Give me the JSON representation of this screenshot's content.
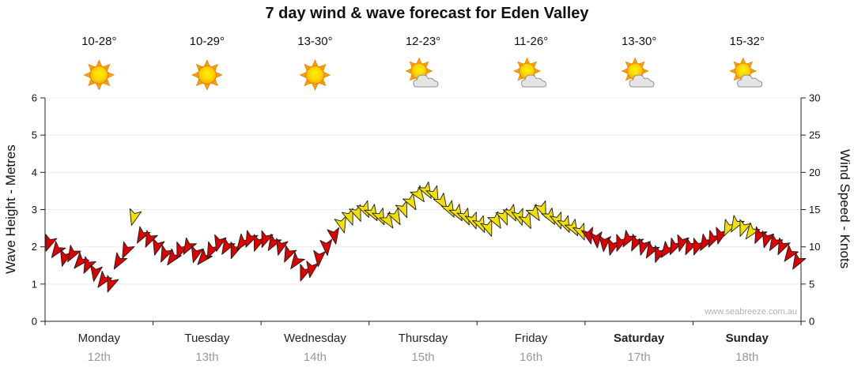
{
  "title": "7 day wind & wave forecast for Eden Valley",
  "watermark": "www.seabreeze.com.au",
  "days": [
    {
      "name": "Monday",
      "date": "12th",
      "temp": "10-28°",
      "icon": "sunny",
      "bold": false
    },
    {
      "name": "Tuesday",
      "date": "13th",
      "temp": "10-29°",
      "icon": "sunny",
      "bold": false
    },
    {
      "name": "Wednesday",
      "date": "14th",
      "temp": "13-30°",
      "icon": "sunny",
      "bold": false
    },
    {
      "name": "Thursday",
      "date": "15th",
      "temp": "12-23°",
      "icon": "partly",
      "bold": false
    },
    {
      "name": "Friday",
      "date": "16th",
      "temp": "11-26°",
      "icon": "partly",
      "bold": false
    },
    {
      "name": "Saturday",
      "date": "17th",
      "temp": "13-30°",
      "icon": "partly",
      "bold": true
    },
    {
      "name": "Sunday",
      "date": "18th",
      "temp": "15-32°",
      "icon": "partly",
      "bold": true
    }
  ],
  "axes": {
    "left_ticks": [
      0,
      1,
      2,
      3,
      4,
      5,
      6
    ],
    "right_ticks": [
      0,
      5,
      10,
      15,
      20,
      25,
      30
    ]
  },
  "chart_data": {
    "type": "wind-arrow-series",
    "title": "7 day wind & wave forecast for Eden Valley",
    "x_axis": {
      "days": [
        "Monday 12th",
        "Tuesday 13th",
        "Wednesday 14th",
        "Thursday 15th",
        "Friday 16th",
        "Saturday 17th",
        "Sunday 18th"
      ]
    },
    "left_axis": {
      "label": "Wave Height - Metres",
      "range": [
        0,
        6
      ]
    },
    "right_axis": {
      "label": "Wind Speed - Knots",
      "range": [
        0,
        30
      ]
    },
    "threshold_knots": 12,
    "colors": {
      "below": "#dd0000",
      "above": "#f2e000",
      "arrow_outline": "#1a1a1a"
    },
    "series": [
      {
        "day": "Monday",
        "knots": [
          10.5,
          9.5,
          8.5,
          9,
          8,
          7.5,
          6.5,
          5.5,
          5,
          8,
          9.5,
          14,
          11.5,
          11
        ],
        "dir": [
          200,
          215,
          195,
          210,
          220,
          205,
          190,
          215,
          200,
          210,
          205,
          195,
          210,
          205
        ]
      },
      {
        "day": "Tuesday",
        "knots": [
          10,
          9,
          8.5,
          9.5,
          10,
          9,
          8.5,
          9.5,
          10.5,
          10,
          9.5,
          10.5,
          11,
          10.5
        ],
        "dir": [
          195,
          205,
          215,
          200,
          210,
          195,
          220,
          205,
          195,
          210,
          200,
          215,
          205,
          200
        ]
      },
      {
        "day": "Wednesday",
        "knots": [
          11,
          10.5,
          10,
          9,
          8,
          6.5,
          7,
          8.5,
          10,
          11.5,
          13,
          14,
          14.5,
          15
        ],
        "dir": [
          200,
          210,
          195,
          205,
          215,
          200,
          190,
          185,
          175,
          170,
          165,
          160,
          158,
          155
        ]
      },
      {
        "day": "Thursday",
        "knots": [
          14.5,
          14,
          13.5,
          14,
          15,
          16,
          17,
          17.5,
          17,
          16,
          15,
          14.5,
          14,
          13.5
        ],
        "dir": [
          150,
          155,
          148,
          152,
          158,
          150,
          145,
          150,
          155,
          148,
          152,
          150,
          155,
          160
        ]
      },
      {
        "day": "Friday",
        "knots": [
          13,
          12.5,
          13.5,
          14,
          14.5,
          14,
          13.5,
          14.5,
          15,
          14,
          13.5,
          13,
          12.5,
          12
        ],
        "dir": [
          155,
          160,
          150,
          158,
          152,
          162,
          155,
          148,
          158,
          150,
          160,
          155,
          150,
          158
        ]
      },
      {
        "day": "Saturday",
        "knots": [
          11.5,
          11,
          10.5,
          10,
          10.5,
          11,
          10.5,
          10,
          9.5,
          9,
          9.5,
          10,
          10.5,
          10
        ],
        "dir": [
          165,
          175,
          185,
          195,
          200,
          210,
          205,
          195,
          210,
          200,
          215,
          205,
          195,
          205
        ]
      },
      {
        "day": "Sunday",
        "knots": [
          10,
          10.5,
          11,
          11.5,
          12.5,
          13,
          12.5,
          12,
          11.5,
          11,
          10.5,
          10,
          9,
          8
        ],
        "dir": [
          200,
          210,
          205,
          195,
          205,
          210,
          200,
          215,
          205,
          195,
          210,
          205,
          215,
          210
        ]
      }
    ]
  }
}
